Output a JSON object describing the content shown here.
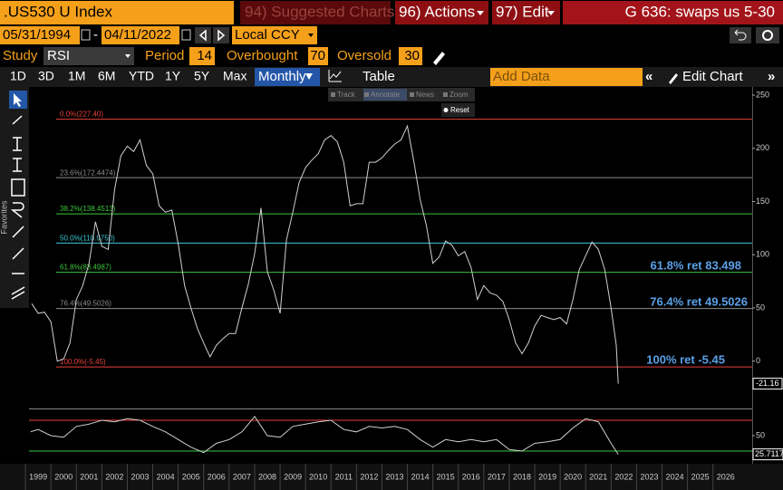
{
  "header": {
    "security": ".US530 U Index",
    "suggested": "94) Suggested Charts",
    "actions": "96) Actions",
    "edit": "97) Edit",
    "title": "G 636: swaps us 5-30"
  },
  "dates": {
    "start": "05/31/1994",
    "end": "04/11/2022",
    "currency": "Local CCY"
  },
  "study": {
    "label": "Study",
    "name": "RSI",
    "period_label": "Period",
    "period": 14,
    "overbought_label": "Overbought",
    "overbought": 70,
    "oversold_label": "Oversold",
    "oversold": 30
  },
  "toolbar": {
    "ranges": [
      "1D",
      "3D",
      "1M",
      "6M",
      "YTD",
      "1Y",
      "5Y",
      "Max"
    ],
    "frequency": "Monthly",
    "table": "Table",
    "add_data": "Add Data",
    "edit_chart": "Edit Chart"
  },
  "chart_tools": {
    "items": [
      "Track",
      "Annotate",
      "News",
      "Zoom"
    ],
    "reset": "Reset"
  },
  "sidebar": {
    "favorites": "Favorites"
  },
  "chart_data": {
    "type": "line",
    "xlim": [
      1999.14,
      2027.54
    ],
    "xticks": [
      1999,
      2000,
      2001,
      2002,
      2003,
      2004,
      2005,
      2006,
      2007,
      2008,
      2009,
      2010,
      2011,
      2012,
      2013,
      2014,
      2015,
      2016,
      2017,
      2018,
      2019,
      2020,
      2021,
      2022,
      2023,
      2024,
      2025,
      2026
    ],
    "ylim": [
      -44.5,
      257.7
    ],
    "yticks": [
      0,
      50,
      100,
      150,
      200,
      250
    ],
    "series": [
      {
        "color": "#d0d0d0",
        "x": [
          1999.25,
          1999.5,
          1999.75,
          2000,
          2000.25,
          2000.5,
          2000.75,
          2001,
          2001.25,
          2001.5,
          2001.75,
          2002,
          2002.25,
          2002.5,
          2002.75,
          2003,
          2003.25,
          2003.5,
          2003.75,
          2004,
          2004.25,
          2004.5,
          2004.75,
          2005,
          2005.25,
          2005.5,
          2005.75,
          2006,
          2006.25,
          2006.5,
          2006.75,
          2007,
          2007.25,
          2007.5,
          2007.75,
          2008,
          2008.25,
          2008.5,
          2008.75,
          2009,
          2009.25,
          2009.5,
          2009.75,
          2010,
          2010.25,
          2010.5,
          2010.75,
          2011,
          2011.25,
          2011.5,
          2011.75,
          2012,
          2012.25,
          2012.5,
          2012.75,
          2013,
          2013.25,
          2013.5,
          2013.75,
          2014,
          2014.25,
          2014.5,
          2014.75,
          2015,
          2015.25,
          2015.5,
          2015.75,
          2016,
          2016.25,
          2016.5,
          2016.75,
          2017,
          2017.25,
          2017.5,
          2017.75,
          2018,
          2018.25,
          2018.5,
          2018.75,
          2019,
          2019.25,
          2019.5,
          2019.75,
          2020,
          2020.25,
          2020.5,
          2020.75,
          2021,
          2021.25,
          2021.5,
          2021.75,
          2022,
          2022.2,
          2022.28
        ],
        "values": [
          54,
          45,
          46,
          37,
          0,
          2,
          17,
          58,
          71,
          92,
          131,
          108,
          105,
          161,
          193,
          202,
          197,
          208,
          184,
          176,
          146,
          140,
          142,
          110,
          71,
          50,
          31,
          17,
          4,
          15,
          21,
          26,
          26,
          50,
          72,
          101,
          144,
          84,
          67,
          45,
          114,
          140,
          168,
          182,
          189,
          195,
          208,
          212,
          206,
          187,
          146,
          148,
          148,
          187,
          187,
          191,
          198,
          204,
          208,
          221,
          188,
          152,
          127,
          92,
          98,
          113,
          109,
          99,
          103,
          88,
          58,
          71,
          64,
          62,
          56,
          39,
          17,
          7,
          17,
          33,
          43,
          41,
          39,
          41,
          35,
          58,
          86,
          99,
          112,
          105,
          86,
          50,
          15,
          -21.16
        ]
      }
    ],
    "levels": [
      {
        "label": "0.0%(227.40)",
        "value": 227.4,
        "color": "#e8413c"
      },
      {
        "label": "23.6%(172.4474)",
        "value": 172.4474,
        "color": "#8c8c8c"
      },
      {
        "label": "38.2%(138.4513)",
        "value": 138.4513,
        "color": "#3cc83c"
      },
      {
        "label": "50.0%(110.9750)",
        "value": 110.975,
        "color": "#3cc8d8"
      },
      {
        "label": "61.8%(83.4987)",
        "value": 83.4987,
        "color": "#3cc83c"
      },
      {
        "label": "76.4%(49.5026)",
        "value": 49.5026,
        "color": "#8c8c8c"
      },
      {
        "label": "100.0%(-5.45)",
        "value": -5.45,
        "color": "#e8413c"
      }
    ],
    "annotations": [
      "61.8% ret 83.498",
      "76.4% ret 49.5026",
      "100% ret -5.45"
    ],
    "annotation_color": "#5aa0e6",
    "rsi": {
      "ylim": [
        13.5,
        83
      ],
      "yticks": [
        50
      ],
      "color": "#d0d0d0",
      "overbought_color": "#e8413c",
      "oversold_color": "#3cc83c",
      "x": [
        1999.2,
        1999.5,
        2000,
        2000.5,
        2001,
        2001.5,
        2002,
        2002.5,
        2003,
        2003.5,
        2004,
        2004.5,
        2005,
        2005.5,
        2006,
        2006.5,
        2007,
        2007.5,
        2008,
        2008.5,
        2009,
        2009.5,
        2010,
        2010.5,
        2011,
        2011.5,
        2012,
        2012.5,
        2013,
        2013.5,
        2014,
        2014.5,
        2015,
        2015.5,
        2016,
        2016.5,
        2017,
        2017.5,
        2018,
        2018.5,
        2019,
        2019.5,
        2020,
        2020.5,
        2021,
        2021.5,
        2022,
        2022.28
      ],
      "values": [
        55,
        58,
        50,
        48,
        62,
        65,
        70,
        68,
        72,
        70,
        62,
        55,
        45,
        35,
        28,
        40,
        45,
        55,
        75,
        50,
        48,
        62,
        65,
        68,
        70,
        58,
        55,
        62,
        60,
        62,
        58,
        45,
        35,
        45,
        42,
        45,
        42,
        45,
        32,
        30,
        40,
        42,
        45,
        60,
        72,
        68,
        40,
        25.7117
      ]
    }
  }
}
